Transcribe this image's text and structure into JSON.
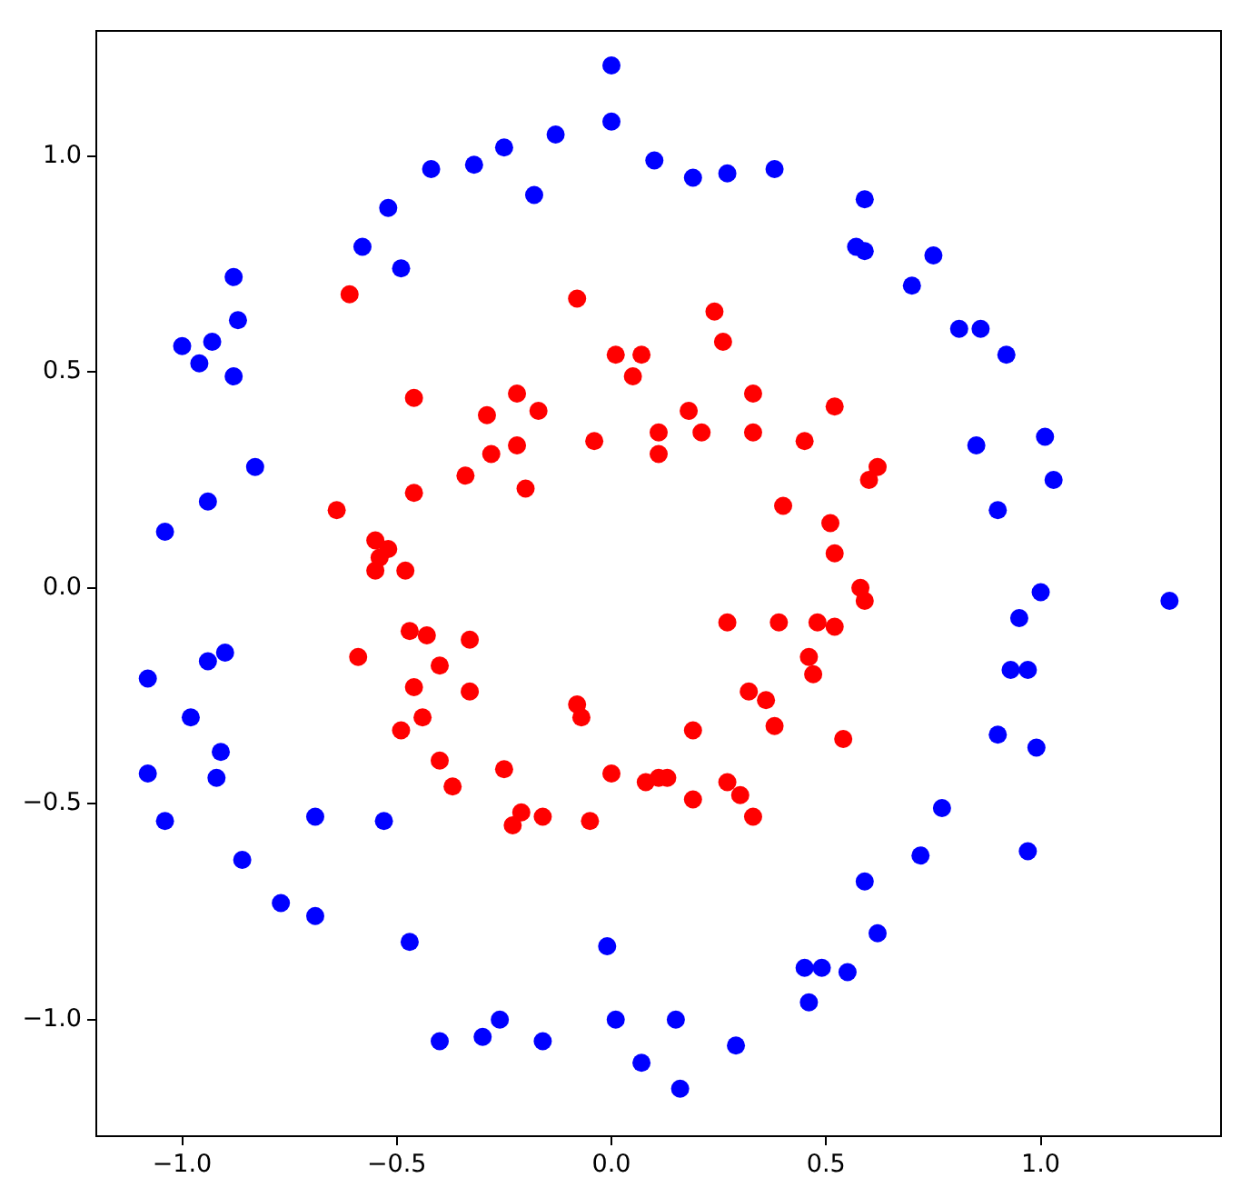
{
  "chart_data": {
    "type": "scatter",
    "marker": "circle",
    "xlim": [
      -1.2,
      1.42
    ],
    "ylim": [
      -1.27,
      1.29
    ],
    "xticks": [
      {
        "value": -1,
        "label": "−1.0"
      },
      {
        "value": -0.5,
        "label": "−0.5"
      },
      {
        "value": 0,
        "label": "0.0"
      },
      0.5,
      {
        "value": 1,
        "label": "1.0"
      }
    ],
    "yticks": [
      {
        "value": -1,
        "label": "−1.0"
      },
      {
        "value": -0.5,
        "label": "−0.5"
      },
      {
        "value": 0,
        "label": "0.0"
      },
      0.5,
      {
        "value": 1,
        "label": "1.0"
      }
    ],
    "series": [
      {
        "color": "#0000ff",
        "x": [
          0.0,
          0.0,
          0.1,
          -0.13,
          -0.25,
          -0.32,
          -0.42,
          -0.18,
          -0.52,
          -0.58,
          -0.49,
          -0.88,
          -0.87,
          -1.0,
          -0.93,
          -0.96,
          -0.88,
          -0.83,
          -0.94,
          -1.04,
          0.19,
          0.27,
          0.38,
          0.59,
          0.57,
          0.59,
          0.75,
          0.7,
          0.81,
          0.86,
          0.92,
          0.85,
          1.01,
          1.03,
          0.9,
          -1.08,
          -0.94,
          -0.9,
          -0.98,
          -0.91,
          -1.08,
          -0.92,
          -1.04,
          -0.69,
          -0.53,
          -0.86,
          -0.77,
          -0.69,
          -0.47,
          -0.01,
          -0.4,
          -0.3,
          -0.26,
          -0.16,
          0.01,
          0.07,
          1.0,
          1.3,
          0.95,
          0.93,
          0.97,
          0.9,
          0.99,
          0.77,
          0.97,
          0.72,
          0.59,
          0.62,
          0.45,
          0.49,
          0.55,
          0.46,
          0.15,
          0.29,
          0.16
        ],
        "values": [
          1.21,
          1.08,
          0.99,
          1.05,
          1.02,
          0.98,
          0.97,
          0.91,
          0.88,
          0.79,
          0.74,
          0.72,
          0.62,
          0.56,
          0.57,
          0.52,
          0.49,
          0.28,
          0.2,
          0.13,
          0.95,
          0.96,
          0.97,
          0.9,
          0.79,
          0.78,
          0.77,
          0.7,
          0.6,
          0.6,
          0.54,
          0.33,
          0.35,
          0.25,
          0.18,
          -0.21,
          -0.17,
          -0.15,
          -0.3,
          -0.38,
          -0.43,
          -0.44,
          -0.54,
          -0.53,
          -0.54,
          -0.63,
          -0.73,
          -0.76,
          -0.82,
          -0.83,
          -1.05,
          -1.04,
          -1.0,
          -1.05,
          -1.0,
          -1.1,
          -0.01,
          -0.03,
          -0.07,
          -0.19,
          -0.19,
          -0.34,
          -0.37,
          -0.51,
          -0.61,
          -0.62,
          -0.68,
          -0.8,
          -0.88,
          -0.88,
          -0.89,
          -0.96,
          -1.0,
          -1.06,
          -1.16
        ]
      },
      {
        "color": "#ff0000",
        "x": [
          -0.61,
          -0.08,
          0.01,
          0.07,
          0.05,
          -0.46,
          -0.22,
          -0.29,
          -0.17,
          -0.04,
          0.11,
          0.11,
          -0.28,
          -0.22,
          -0.34,
          -0.2,
          -0.46,
          -0.64,
          -0.55,
          -0.52,
          -0.54,
          -0.55,
          -0.48,
          0.24,
          0.26,
          0.33,
          0.18,
          0.52,
          0.21,
          0.33,
          0.45,
          0.62,
          0.6,
          0.4,
          0.51,
          0.52,
          -0.59,
          -0.47,
          -0.43,
          -0.33,
          -0.4,
          -0.46,
          -0.33,
          -0.44,
          -0.49,
          -0.08,
          -0.07,
          -0.4,
          -0.37,
          -0.25,
          0.0,
          0.08,
          -0.21,
          -0.23,
          -0.16,
          -0.05,
          0.58,
          0.59,
          0.27,
          0.39,
          0.48,
          0.52,
          0.46,
          0.47,
          0.32,
          0.36,
          0.19,
          0.38,
          0.54,
          0.11,
          0.13,
          0.19,
          0.27,
          0.3,
          0.33
        ],
        "values": [
          0.68,
          0.67,
          0.54,
          0.54,
          0.49,
          0.44,
          0.45,
          0.4,
          0.41,
          0.34,
          0.36,
          0.31,
          0.31,
          0.33,
          0.26,
          0.23,
          0.22,
          0.18,
          0.11,
          0.09,
          0.07,
          0.04,
          0.04,
          0.64,
          0.57,
          0.45,
          0.41,
          0.42,
          0.36,
          0.36,
          0.34,
          0.28,
          0.25,
          0.19,
          0.15,
          0.08,
          -0.16,
          -0.1,
          -0.11,
          -0.12,
          -0.18,
          -0.23,
          -0.24,
          -0.3,
          -0.33,
          -0.27,
          -0.3,
          -0.4,
          -0.46,
          -0.42,
          -0.43,
          -0.45,
          -0.52,
          -0.55,
          -0.53,
          -0.54,
          0.0,
          -0.03,
          -0.08,
          -0.08,
          -0.08,
          -0.09,
          -0.16,
          -0.2,
          -0.24,
          -0.26,
          -0.33,
          -0.32,
          -0.35,
          -0.44,
          -0.44,
          -0.49,
          -0.45,
          -0.48,
          -0.53
        ]
      }
    ]
  }
}
